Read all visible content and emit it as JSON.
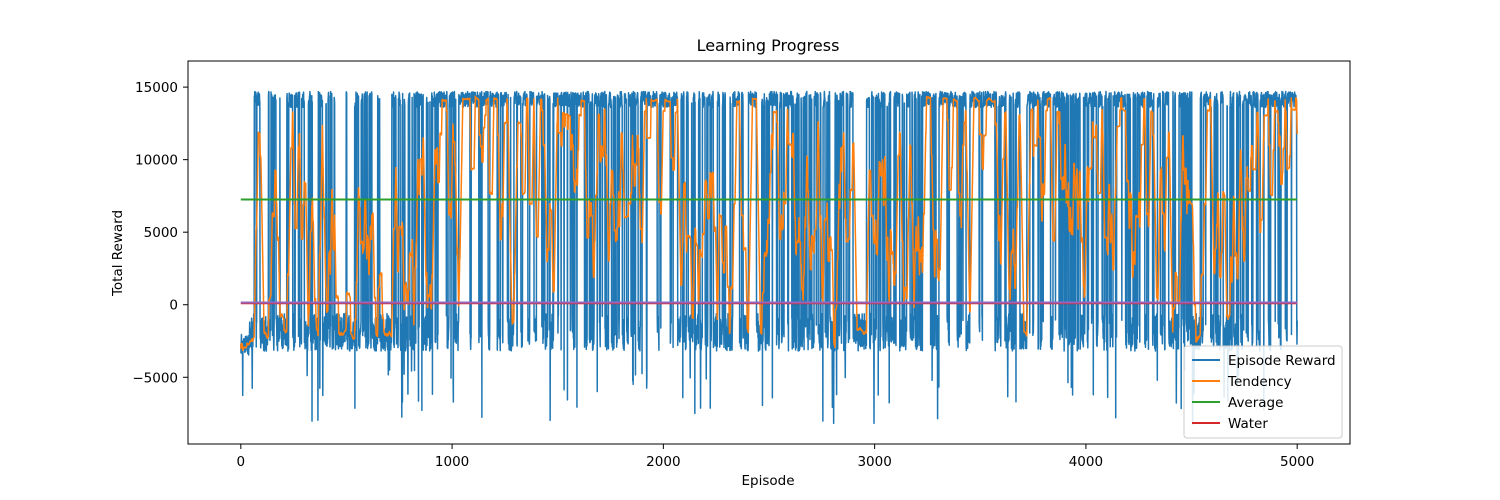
{
  "chart_data": {
    "type": "line",
    "title": "Learning Progress",
    "xlabel": "Episode",
    "ylabel": "Total Reward",
    "xlim": [
      -250,
      5250
    ],
    "ylim": [
      -9600,
      16800
    ],
    "xticks": [
      0,
      1000,
      2000,
      3000,
      4000,
      5000
    ],
    "yticks": [
      -5000,
      0,
      5000,
      10000,
      15000
    ],
    "grid": false,
    "legend_position": "lower-right",
    "n_episodes": 5000,
    "series": [
      {
        "name": "Episode Reward",
        "color": "#1f77b4",
        "description": "noisy per-episode total reward",
        "approx_range": [
          -8600,
          15600
        ],
        "typical_high": 14500,
        "typical_low": -3000
      },
      {
        "name": "Tendency",
        "color": "#ff7f0e",
        "description": "moving average of episode reward",
        "approx_range": [
          -3200,
          14200
        ]
      },
      {
        "name": "Average",
        "color": "#2ca02c",
        "value": 7250
      },
      {
        "name": "Water",
        "color": "#d62728",
        "value": 100
      }
    ],
    "extra_line": {
      "color": "#9467bd",
      "value": 150
    }
  }
}
